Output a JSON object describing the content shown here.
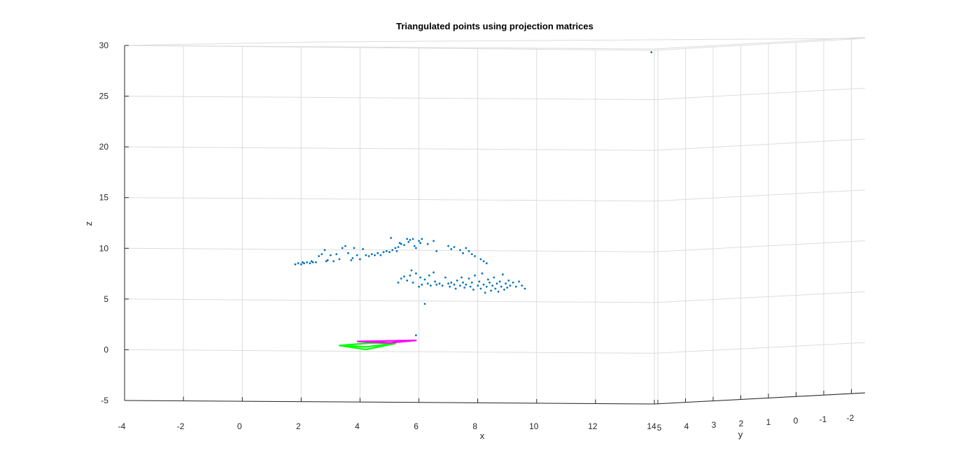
{
  "chart_data": {
    "type": "scatter",
    "title": "Triangulated points using projection matrices",
    "xlabel": "x",
    "ylabel": "y",
    "zlabel": "z",
    "xlim": [
      -4,
      14
    ],
    "ylim": [
      -2.5,
      5
    ],
    "zlim": [
      -5,
      30
    ],
    "x_ticks": [
      "-4",
      "-2",
      "0",
      "2",
      "4",
      "6",
      "8",
      "10",
      "12",
      "14"
    ],
    "y_ticks": [
      "5",
      "4",
      "3",
      "2",
      "1",
      "0",
      "-1",
      "-2"
    ],
    "z_ticks": [
      "-5",
      "0",
      "5",
      "10",
      "15",
      "20",
      "25",
      "30"
    ],
    "grid": true,
    "view": "3-D perspective, viewed from near the x-z plane",
    "colors": {
      "points": "#0072BD",
      "camera1": "#00FF00",
      "camera2": "#FF00FF",
      "axes": "#262626",
      "grid": "#dcdcdc"
    },
    "series": [
      {
        "marker": "point",
        "color": "#0072BD",
        "note": "approximate x-z projection of triangulated point cloud",
        "points": [
          {
            "x": 1.8,
            "z": 8.7
          },
          {
            "x": 1.9,
            "z": 8.8
          },
          {
            "x": 2.0,
            "z": 8.7
          },
          {
            "x": 2.05,
            "z": 8.9
          },
          {
            "x": 2.1,
            "z": 8.8
          },
          {
            "x": 2.2,
            "z": 8.9
          },
          {
            "x": 2.3,
            "z": 8.8
          },
          {
            "x": 2.35,
            "z": 9.0
          },
          {
            "x": 2.4,
            "z": 8.9
          },
          {
            "x": 2.5,
            "z": 8.9
          },
          {
            "x": 2.6,
            "z": 9.5
          },
          {
            "x": 2.7,
            "z": 9.7
          },
          {
            "x": 2.8,
            "z": 10.1
          },
          {
            "x": 2.85,
            "z": 9.0
          },
          {
            "x": 2.9,
            "z": 9.1
          },
          {
            "x": 3.0,
            "z": 9.6
          },
          {
            "x": 3.1,
            "z": 9.0
          },
          {
            "x": 3.2,
            "z": 9.7
          },
          {
            "x": 3.3,
            "z": 9.2
          },
          {
            "x": 3.4,
            "z": 10.3
          },
          {
            "x": 3.5,
            "z": 10.5
          },
          {
            "x": 3.6,
            "z": 9.8
          },
          {
            "x": 3.7,
            "z": 9.1
          },
          {
            "x": 3.75,
            "z": 9.3
          },
          {
            "x": 3.8,
            "z": 10.3
          },
          {
            "x": 3.9,
            "z": 9.6
          },
          {
            "x": 4.0,
            "z": 9.2
          },
          {
            "x": 4.1,
            "z": 10.2
          },
          {
            "x": 4.2,
            "z": 9.6
          },
          {
            "x": 4.3,
            "z": 9.5
          },
          {
            "x": 4.4,
            "z": 9.7
          },
          {
            "x": 4.5,
            "z": 9.6
          },
          {
            "x": 4.6,
            "z": 9.8
          },
          {
            "x": 4.7,
            "z": 9.6
          },
          {
            "x": 4.8,
            "z": 9.9
          },
          {
            "x": 4.9,
            "z": 10.0
          },
          {
            "x": 5.0,
            "z": 9.9
          },
          {
            "x": 5.05,
            "z": 11.3
          },
          {
            "x": 5.1,
            "z": 10.1
          },
          {
            "x": 5.2,
            "z": 10.3
          },
          {
            "x": 5.25,
            "z": 10.0
          },
          {
            "x": 5.3,
            "z": 10.4
          },
          {
            "x": 5.35,
            "z": 10.8
          },
          {
            "x": 5.4,
            "z": 10.7
          },
          {
            "x": 5.5,
            "z": 10.6
          },
          {
            "x": 5.6,
            "z": 11.2
          },
          {
            "x": 5.65,
            "z": 10.9
          },
          {
            "x": 5.7,
            "z": 11.1
          },
          {
            "x": 5.8,
            "z": 11.2
          },
          {
            "x": 5.85,
            "z": 10.5
          },
          {
            "x": 5.9,
            "z": 10.3
          },
          {
            "x": 6.0,
            "z": 11.0
          },
          {
            "x": 6.05,
            "z": 10.8
          },
          {
            "x": 6.1,
            "z": 11.2
          },
          {
            "x": 6.3,
            "z": 10.7
          },
          {
            "x": 6.5,
            "z": 11.0
          },
          {
            "x": 6.6,
            "z": 10.0
          },
          {
            "x": 7.0,
            "z": 10.5
          },
          {
            "x": 7.1,
            "z": 10.2
          },
          {
            "x": 7.2,
            "z": 10.4
          },
          {
            "x": 7.4,
            "z": 10.1
          },
          {
            "x": 7.5,
            "z": 9.8
          },
          {
            "x": 7.6,
            "z": 10.3
          },
          {
            "x": 7.7,
            "z": 10.0
          },
          {
            "x": 7.8,
            "z": 9.7
          },
          {
            "x": 7.9,
            "z": 9.5
          },
          {
            "x": 8.1,
            "z": 9.2
          },
          {
            "x": 8.2,
            "z": 9.0
          },
          {
            "x": 8.3,
            "z": 8.8
          },
          {
            "x": 5.3,
            "z": 6.9
          },
          {
            "x": 5.4,
            "z": 7.3
          },
          {
            "x": 5.5,
            "z": 7.5
          },
          {
            "x": 5.6,
            "z": 7.1
          },
          {
            "x": 5.7,
            "z": 7.6
          },
          {
            "x": 5.75,
            "z": 8.1
          },
          {
            "x": 5.8,
            "z": 6.9
          },
          {
            "x": 5.9,
            "z": 7.8
          },
          {
            "x": 6.0,
            "z": 6.5
          },
          {
            "x": 6.05,
            "z": 7.4
          },
          {
            "x": 6.1,
            "z": 6.7
          },
          {
            "x": 6.2,
            "z": 7.2
          },
          {
            "x": 6.3,
            "z": 6.8
          },
          {
            "x": 6.35,
            "z": 7.6
          },
          {
            "x": 6.4,
            "z": 6.6
          },
          {
            "x": 6.5,
            "z": 7.9
          },
          {
            "x": 6.55,
            "z": 7.0
          },
          {
            "x": 6.6,
            "z": 6.7
          },
          {
            "x": 6.7,
            "z": 6.8
          },
          {
            "x": 6.8,
            "z": 6.6
          },
          {
            "x": 6.9,
            "z": 7.4
          },
          {
            "x": 7.0,
            "z": 6.8
          },
          {
            "x": 7.05,
            "z": 6.5
          },
          {
            "x": 7.1,
            "z": 6.9
          },
          {
            "x": 7.2,
            "z": 6.7
          },
          {
            "x": 7.25,
            "z": 6.3
          },
          {
            "x": 7.3,
            "z": 7.1
          },
          {
            "x": 7.4,
            "z": 6.6
          },
          {
            "x": 7.45,
            "z": 7.4
          },
          {
            "x": 7.5,
            "z": 6.9
          },
          {
            "x": 7.55,
            "z": 6.4
          },
          {
            "x": 7.6,
            "z": 6.7
          },
          {
            "x": 7.7,
            "z": 7.3
          },
          {
            "x": 7.75,
            "z": 6.5
          },
          {
            "x": 7.8,
            "z": 6.9
          },
          {
            "x": 7.85,
            "z": 6.2
          },
          {
            "x": 7.9,
            "z": 7.6
          },
          {
            "x": 8.0,
            "z": 6.6
          },
          {
            "x": 8.05,
            "z": 7.0
          },
          {
            "x": 8.1,
            "z": 6.3
          },
          {
            "x": 8.15,
            "z": 7.8
          },
          {
            "x": 8.2,
            "z": 6.7
          },
          {
            "x": 8.25,
            "z": 5.9
          },
          {
            "x": 8.3,
            "z": 6.5
          },
          {
            "x": 8.35,
            "z": 7.2
          },
          {
            "x": 8.4,
            "z": 6.9
          },
          {
            "x": 8.45,
            "z": 6.1
          },
          {
            "x": 8.5,
            "z": 6.6
          },
          {
            "x": 8.55,
            "z": 7.4
          },
          {
            "x": 8.6,
            "z": 6.3
          },
          {
            "x": 8.65,
            "z": 6.8
          },
          {
            "x": 8.7,
            "z": 6.0
          },
          {
            "x": 8.75,
            "z": 7.0
          },
          {
            "x": 8.8,
            "z": 6.5
          },
          {
            "x": 8.85,
            "z": 7.7
          },
          {
            "x": 8.9,
            "z": 6.2
          },
          {
            "x": 8.95,
            "z": 6.8
          },
          {
            "x": 9.0,
            "z": 6.4
          },
          {
            "x": 9.05,
            "z": 7.1
          },
          {
            "x": 9.1,
            "z": 6.6
          },
          {
            "x": 9.2,
            "z": 6.9
          },
          {
            "x": 9.3,
            "z": 6.5
          },
          {
            "x": 9.4,
            "z": 7.0
          },
          {
            "x": 9.5,
            "z": 6.6
          },
          {
            "x": 9.6,
            "z": 6.3
          },
          {
            "x": 6.2,
            "z": 4.8
          },
          {
            "x": 5.9,
            "z": 1.7
          },
          {
            "x": 13.9,
            "z": 29.6
          }
        ]
      },
      {
        "name": "",
        "type": "camera",
        "color": "#00FF00",
        "note": "camera 1 frustum outline (x-z projection)",
        "polyline": [
          {
            "x": 3.3,
            "z": 0.7
          },
          {
            "x": 4.2,
            "z": 0.3
          },
          {
            "x": 5.2,
            "z": 0.9
          },
          {
            "x": 4.4,
            "z": 0.95
          },
          {
            "x": 3.3,
            "z": 0.7
          },
          {
            "x": 4.2,
            "z": 0.55
          },
          {
            "x": 5.2,
            "z": 0.9
          },
          {
            "x": 4.2,
            "z": 0.3
          }
        ]
      },
      {
        "name": "",
        "type": "camera",
        "color": "#FF00FF",
        "note": "camera 2 frustum outline (x-z projection)",
        "polyline": [
          {
            "x": 3.9,
            "z": 1.1
          },
          {
            "x": 5.9,
            "z": 1.2
          },
          {
            "x": 5.0,
            "z": 0.95
          },
          {
            "x": 3.9,
            "z": 1.1
          }
        ]
      }
    ]
  }
}
